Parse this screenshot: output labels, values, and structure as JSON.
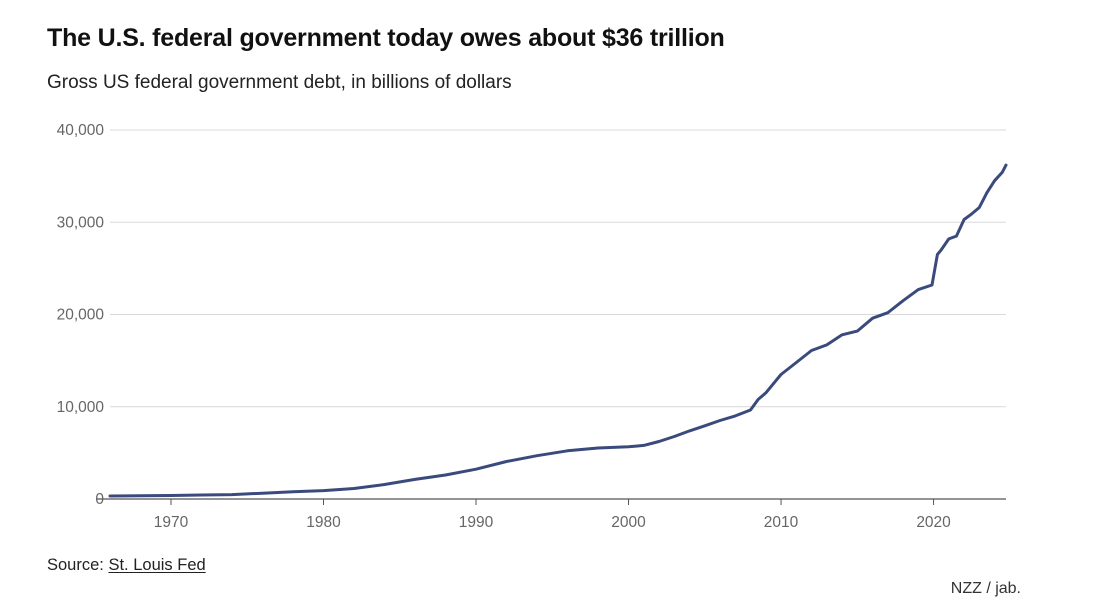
{
  "header": {
    "title": "The U.S. federal government today owes about $36 trillion",
    "subtitle": "Gross US federal government debt, in billions of dollars"
  },
  "footer": {
    "source_prefix": "Source:",
    "source_link": "St. Louis Fed",
    "credit": "NZZ / jab."
  },
  "colors": {
    "line": "#3a4a7c",
    "grid": "#d9d9d9",
    "axis": "#555555"
  },
  "chart_data": {
    "type": "line",
    "title": "The U.S. federal government today owes about $36 trillion",
    "subtitle": "Gross US federal government debt, in billions of dollars",
    "xlabel": "",
    "ylabel": "",
    "xlim": [
      1966,
      2024.75
    ],
    "ylim": [
      0,
      40000
    ],
    "x_ticks": [
      1970,
      1980,
      1990,
      2000,
      2010,
      2020
    ],
    "y_ticks": [
      0,
      10000,
      20000,
      30000,
      40000
    ],
    "y_tick_labels": [
      "0",
      "10,000",
      "20,000",
      "30,000",
      "40,000"
    ],
    "grid": true,
    "series": [
      {
        "name": "Gross US federal government debt",
        "x": [
          1966,
          1968,
          1970,
          1972,
          1974,
          1976,
          1978,
          1980,
          1982,
          1984,
          1986,
          1988,
          1990,
          1992,
          1994,
          1996,
          1998,
          2000,
          2001,
          2002,
          2003,
          2004,
          2005,
          2006,
          2007,
          2008,
          2008.5,
          2009,
          2010,
          2011,
          2012,
          2013,
          2014,
          2015,
          2016,
          2017,
          2018,
          2019,
          2019.9,
          2020.25,
          2020.5,
          2021,
          2021.5,
          2022,
          2022.5,
          2023,
          2023.5,
          2024,
          2024.5,
          2024.75
        ],
        "values": [
          320,
          350,
          380,
          430,
          480,
          630,
          780,
          910,
          1140,
          1570,
          2120,
          2600,
          3230,
          4060,
          4690,
          5220,
          5530,
          5660,
          5810,
          6230,
          6780,
          7380,
          7930,
          8510,
          9010,
          9650,
          10800,
          11500,
          13500,
          14800,
          16100,
          16700,
          17800,
          18200,
          19600,
          20200,
          21500,
          22700,
          23200,
          26500,
          27000,
          28200,
          28500,
          30300,
          30900,
          31600,
          33200,
          34500,
          35400,
          36200
        ]
      }
    ]
  }
}
